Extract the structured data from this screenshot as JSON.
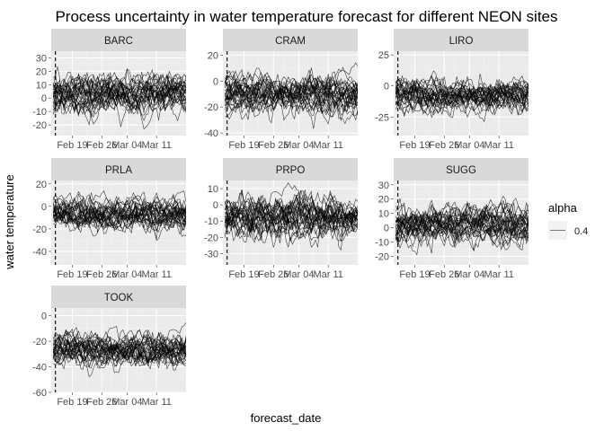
{
  "chart_data": {
    "type": "line",
    "title": "Process uncertainty in water temperature forecast for different NEON sites",
    "xlabel": "forecast_date",
    "ylabel": "water temperature",
    "x_ticks": [
      "Feb 19",
      "Feb 26",
      "Mar 04",
      "Mar 11"
    ],
    "x_range": [
      "2021-02-14",
      "2021-03-18"
    ],
    "reference_line": {
      "x": "2021-02-15",
      "style": "dashed"
    },
    "legend": {
      "title": "alpha",
      "entries": [
        "0.4"
      ],
      "position": "right"
    },
    "grid": true,
    "ensemble_members": 30,
    "panels": [
      {
        "site": "BARC",
        "ylim": [
          -28,
          35
        ],
        "yticks": [
          "30",
          "20",
          "10",
          "0",
          "-10",
          "-20"
        ],
        "center": 3,
        "spread": 10
      },
      {
        "site": "CRAM",
        "ylim": [
          -42,
          23
        ],
        "yticks": [
          "20",
          "0",
          "-20",
          "-40"
        ],
        "center": -10,
        "spread": 10
      },
      {
        "site": "LIRO",
        "ylim": [
          -40,
          28
        ],
        "yticks": [
          "25",
          "0",
          "-25"
        ],
        "center": -8,
        "spread": 9
      },
      {
        "site": "PRLA",
        "ylim": [
          -52,
          23
        ],
        "yticks": [
          "20",
          "0",
          "-20",
          "-40"
        ],
        "center": -7,
        "spread": 10
      },
      {
        "site": "PRPO",
        "ylim": [
          -37,
          15
        ],
        "yticks": [
          "10",
          "0",
          "-10",
          "-20",
          "-30"
        ],
        "center": -8,
        "spread": 9
      },
      {
        "site": "SUGG",
        "ylim": [
          -26,
          33
        ],
        "yticks": [
          "30",
          "20",
          "10",
          "0",
          "-10",
          "-20"
        ],
        "center": 2,
        "spread": 9
      },
      {
        "site": "TOOK",
        "ylim": [
          -60,
          6
        ],
        "yticks": [
          "0",
          "-20",
          "-40",
          "-60"
        ],
        "center": -27,
        "spread": 9
      }
    ]
  }
}
